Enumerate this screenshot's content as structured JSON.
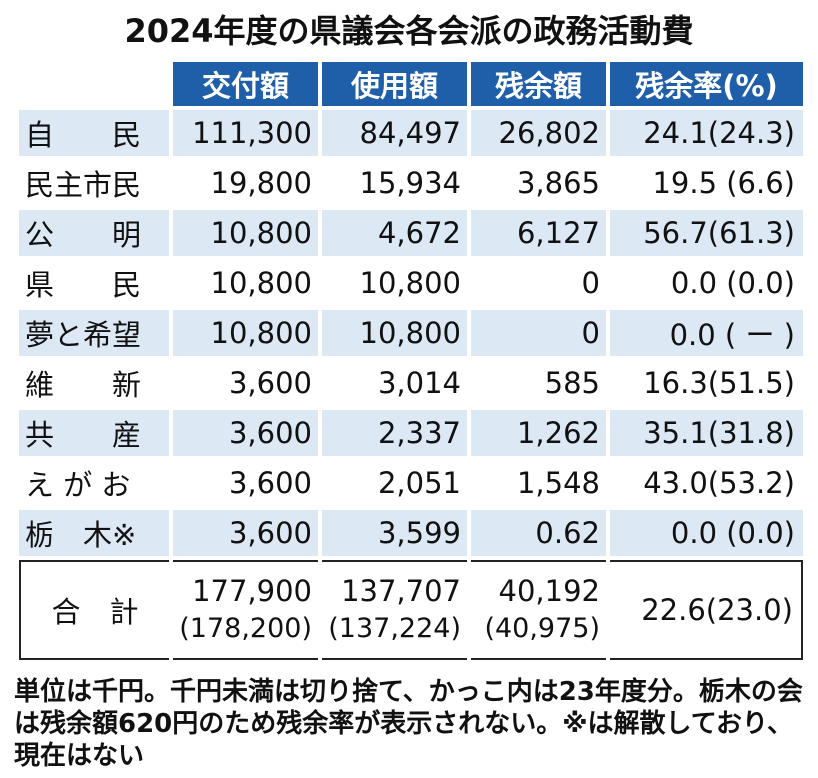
{
  "title": "2024年度の県議会各会派の政務活動費",
  "headers": [
    "交付額",
    "使用額",
    "残余額",
    "残余率(%)"
  ],
  "rows": [
    {
      "name": "自　　民",
      "grant": "111,300",
      "used": "84,497",
      "remain": "26,802",
      "rate": "24.1(24.3)"
    },
    {
      "name": "民主市民",
      "grant": "19,800",
      "used": "15,934",
      "remain": "3,865",
      "rate": "19.5 (6.6)"
    },
    {
      "name": "公　　明",
      "grant": "10,800",
      "used": "4,672",
      "remain": "6,127",
      "rate": "56.7(61.3)"
    },
    {
      "name": "県　　民",
      "grant": "10,800",
      "used": "10,800",
      "remain": "0",
      "rate": "0.0 (0.0)"
    },
    {
      "name": "夢と希望",
      "grant": "10,800",
      "used": "10,800",
      "remain": "0",
      "rate": "0.0 ( ー )"
    },
    {
      "name": "維　　新",
      "grant": "3,600",
      "used": "3,014",
      "remain": "585",
      "rate": "16.3(51.5)"
    },
    {
      "name": "共　　産",
      "grant": "3,600",
      "used": "2,337",
      "remain": "1,262",
      "rate": "35.1(31.8)"
    },
    {
      "name": "え が お",
      "grant": "3,600",
      "used": "2,051",
      "remain": "1,548",
      "rate": "43.0(53.2)"
    },
    {
      "name": "栃　木※",
      "grant": "3,600",
      "used": "3,599",
      "remain": "0.62",
      "rate": "0.0 (0.0)"
    }
  ],
  "total": {
    "name": "合　計",
    "grant": "177,900",
    "grant_prev": "(178,200)",
    "used": "137,707",
    "used_prev": "(137,224)",
    "remain": "40,192",
    "remain_prev": "(40,975)",
    "rate": "22.6(23.0)"
  },
  "note": "単位は千円。千円未満は切り捨て、かっこ内は23年度分。栃木の会は残余額620円のため残余率が表示されない。※は解散しており、現在はない",
  "colors": {
    "header_bg": "#1f5ea8",
    "row_shade": "#dce8f4"
  }
}
